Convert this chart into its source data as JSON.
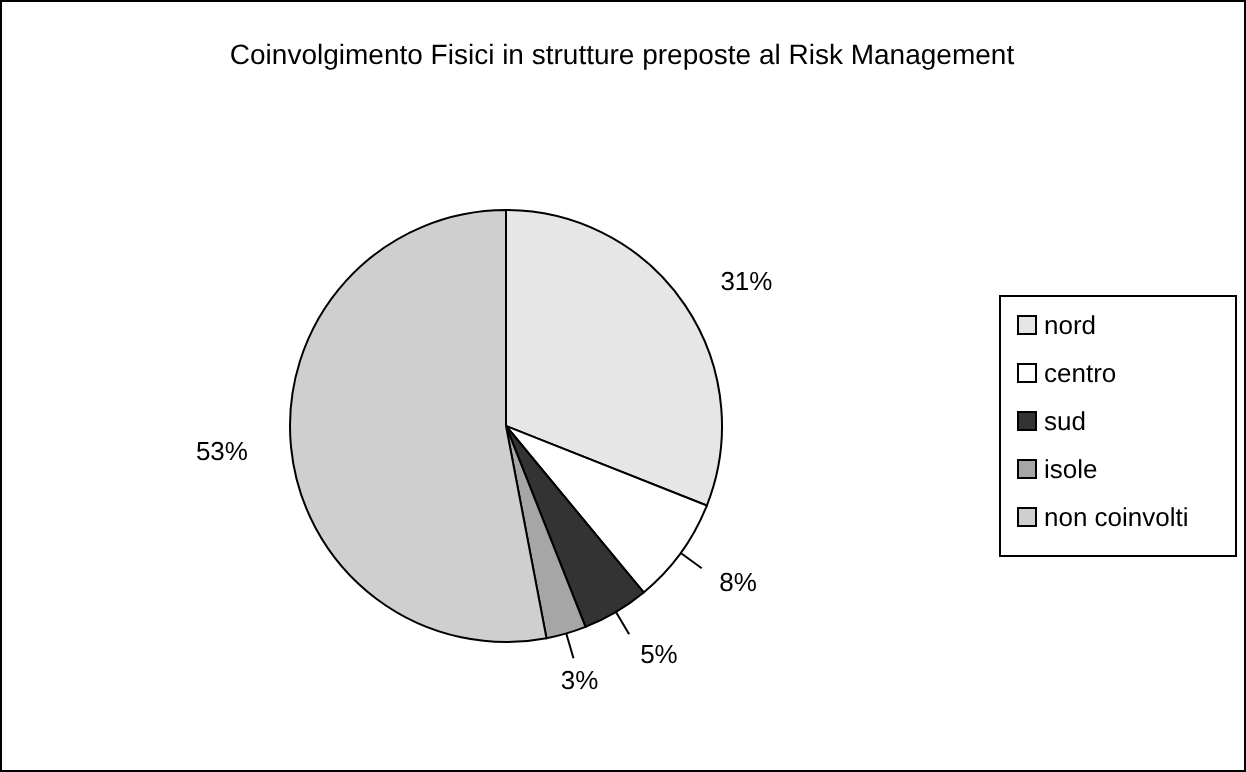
{
  "chart_data": {
    "type": "pie",
    "title": "Coinvolgimento Fisici in strutture preposte al Risk Management",
    "categories": [
      "nord",
      "centro",
      "sud",
      "isole",
      "non coinvolti"
    ],
    "values": [
      31,
      8,
      5,
      3,
      53
    ],
    "value_labels": [
      "31%",
      "8%",
      "5%",
      "3%",
      "53%"
    ],
    "colors": [
      "#e6e6e6",
      "#ffffff",
      "#333333",
      "#a6a6a6",
      "#cfcfcf"
    ],
    "legend": "right"
  }
}
